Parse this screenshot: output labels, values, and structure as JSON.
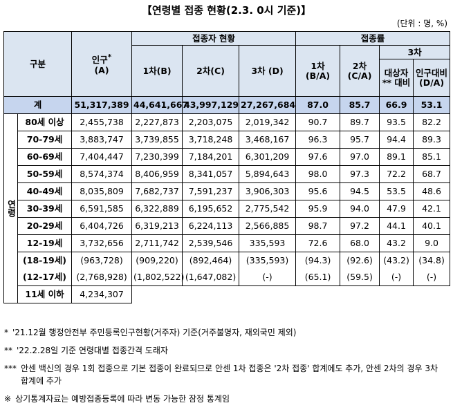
{
  "title": "【연령별 접종 현황(2.3. 0시 기준)】",
  "unit": "(단위 : 명, %)",
  "table": {
    "header": {
      "category": "구분",
      "population": "인구",
      "population_mark": "*",
      "population_sub": "(A)",
      "vaccinated": "접종자 현황",
      "rate": "접종률",
      "dose1": "1차(B)",
      "dose2": "2차(C)",
      "dose3": "3차 (D)",
      "rate1": [
        "1차",
        "(B/A)"
      ],
      "rate2": [
        "2차",
        "(C/A)"
      ],
      "rate3": "3차",
      "rate3_target": [
        "대상자",
        "** 대비"
      ],
      "rate3_population": [
        "인구대비",
        "(D/A)"
      ]
    },
    "total": {
      "label": "계",
      "values": [
        "51,317,389",
        "44,641,667",
        "43,997,129",
        "27,267,684",
        "87.0",
        "85.7",
        "66.9",
        "53.1"
      ]
    },
    "age_group": "연령",
    "rows": [
      {
        "label": "80세 이상",
        "values": [
          "2,455,738",
          "2,227,873",
          "2,203,075",
          "2,019,342",
          "90.7",
          "89.7",
          "93.5",
          "82.2"
        ]
      },
      {
        "label": "70-79세",
        "values": [
          "3,883,747",
          "3,739,855",
          "3,718,248",
          "3,468,167",
          "96.3",
          "95.7",
          "94.4",
          "89.3"
        ]
      },
      {
        "label": "60-69세",
        "values": [
          "7,404,447",
          "7,230,399",
          "7,184,201",
          "6,301,209",
          "97.6",
          "97.0",
          "89.1",
          "85.1"
        ]
      },
      {
        "label": "50-59세",
        "values": [
          "8,574,374",
          "8,406,959",
          "8,341,057",
          "5,894,643",
          "98.0",
          "97.3",
          "72.2",
          "68.7"
        ]
      },
      {
        "label": "40-49세",
        "values": [
          "8,035,809",
          "7,682,737",
          "7,591,237",
          "3,906,303",
          "95.6",
          "94.5",
          "53.5",
          "48.6"
        ]
      },
      {
        "label": "30-39세",
        "values": [
          "6,591,585",
          "6,322,889",
          "6,195,652",
          "2,775,542",
          "95.9",
          "94.0",
          "47.9",
          "42.1"
        ]
      },
      {
        "label": "20-29세",
        "values": [
          "6,404,726",
          "6,319,213",
          "6,224,113",
          "2,566,885",
          "98.7",
          "97.2",
          "44.1",
          "40.1"
        ]
      },
      {
        "label": "12-19세",
        "values": [
          "3,732,656",
          "2,711,742",
          "2,539,546",
          "335,593",
          "72.6",
          "68.0",
          "43.2",
          "9.0"
        ]
      }
    ],
    "sub_rows": [
      {
        "label": "(18-19세)",
        "values": [
          "(963,728)",
          "(909,220)",
          "(892,464)",
          "(335,593)",
          "(94.3)",
          "(92.6)",
          "(43.2)",
          "(34.8)"
        ]
      },
      {
        "label": "(12-17세)",
        "values": [
          "(2,768,928)",
          "(1,802,522)",
          "(1,647,082)",
          "(-)",
          "(65.1)",
          "(59.5)",
          "(-)",
          "(-)"
        ]
      }
    ],
    "last_row": {
      "label": "11세 이하",
      "values": [
        "4,234,307"
      ]
    }
  },
  "footnotes": [
    {
      "mark": "*",
      "text": "'21.12월 행정안전부 주민등록인구현황(거주자) 기준(거주불명자, 재외국민 제외)"
    },
    {
      "mark": "**",
      "text": "'22.2.28일 기준 연령대별 접종간격 도래자"
    },
    {
      "mark": "***",
      "text": "안센 백신의 경우 1회 접종으로 기본 접종이 완료되므로 안센 1차 접종은 '2차 접종' 합계에도 추가, 안센 2차의 경우 3차 합계에 추가"
    },
    {
      "mark": "※",
      "text": "상기통계자료는 예방접종등록에 따라 변동 가능한 잠정 통계임"
    }
  ]
}
